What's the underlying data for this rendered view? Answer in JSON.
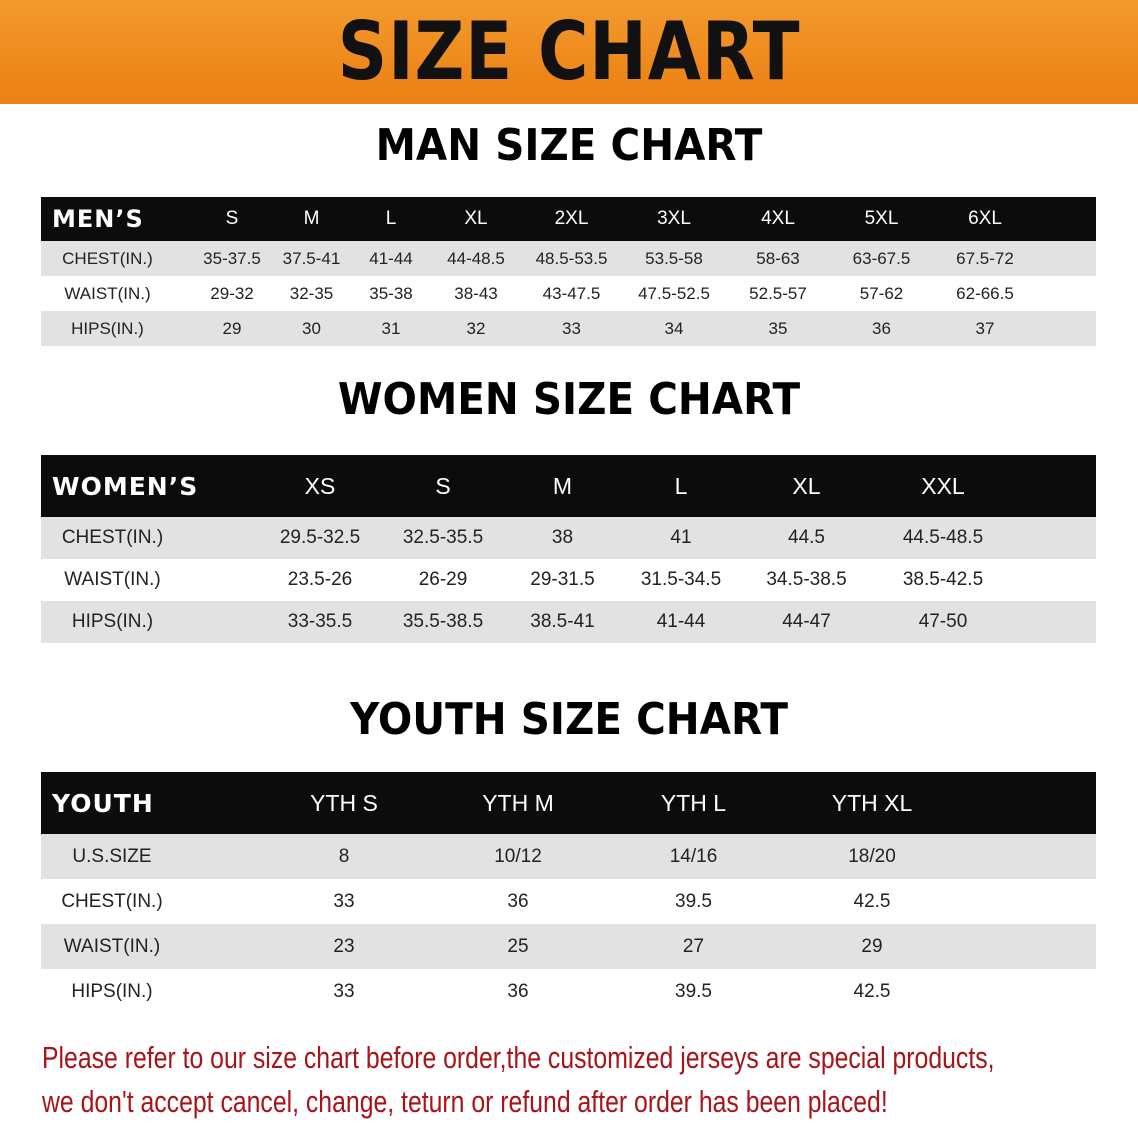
{
  "banner_title": "SIZE CHART",
  "colors": {
    "banner": "#ec7f14",
    "header_row": "#0c0c0c",
    "stripe": "#e2e2e2",
    "note": "#a8141a"
  },
  "men": {
    "heading": "MAN SIZE CHART",
    "header": [
      "MEN’S",
      "S",
      "M",
      "L",
      "XL",
      "2XL",
      "3XL",
      "4XL",
      "5XL",
      "6XL"
    ],
    "rows": [
      [
        "CHEST(IN.)",
        "35-37.5",
        "37.5-41",
        "41-44",
        "44-48.5",
        "48.5-53.5",
        "53.5-58",
        "58-63",
        "63-67.5",
        "67.5-72"
      ],
      [
        "WAIST(IN.)",
        "29-32",
        "32-35",
        "35-38",
        "38-43",
        "43-47.5",
        "47.5-52.5",
        "52.5-57",
        "57-62",
        "62-66.5"
      ],
      [
        "HIPS(IN.)",
        "29",
        "30",
        "31",
        "32",
        "33",
        "34",
        "35",
        "36",
        "37"
      ]
    ]
  },
  "women": {
    "heading": "WOMEN SIZE CHART",
    "header": [
      "WOMEN’S",
      "XS",
      "S",
      "M",
      "L",
      "XL",
      "XXL"
    ],
    "rows": [
      [
        "CHEST(IN.)",
        "29.5-32.5",
        "32.5-35.5",
        "38",
        "41",
        "44.5",
        "44.5-48.5"
      ],
      [
        "WAIST(IN.)",
        "23.5-26",
        "26-29",
        "29-31.5",
        "31.5-34.5",
        "34.5-38.5",
        "38.5-42.5"
      ],
      [
        "HIPS(IN.)",
        "33-35.5",
        "35.5-38.5",
        "38.5-41",
        "41-44",
        "44-47",
        "47-50"
      ]
    ]
  },
  "youth": {
    "heading": "YOUTH SIZE CHART",
    "header": [
      "YOUTH",
      "YTH S",
      "YTH M",
      "YTH L",
      "YTH XL"
    ],
    "rows": [
      [
        "U.S.SIZE",
        "8",
        "10/12",
        "14/16",
        "18/20"
      ],
      [
        "CHEST(IN.)",
        "33",
        "36",
        "39.5",
        "42.5"
      ],
      [
        "WAIST(IN.)",
        "23",
        "25",
        "27",
        "29"
      ],
      [
        "HIPS(IN.)",
        "33",
        "36",
        "39.5",
        "42.5"
      ]
    ]
  },
  "note": {
    "line1": "Please refer to our size chart before order,the customized jerseys are special products,",
    "line2": "we don't accept cancel, change, teturn or refund after order has been placed!"
  }
}
